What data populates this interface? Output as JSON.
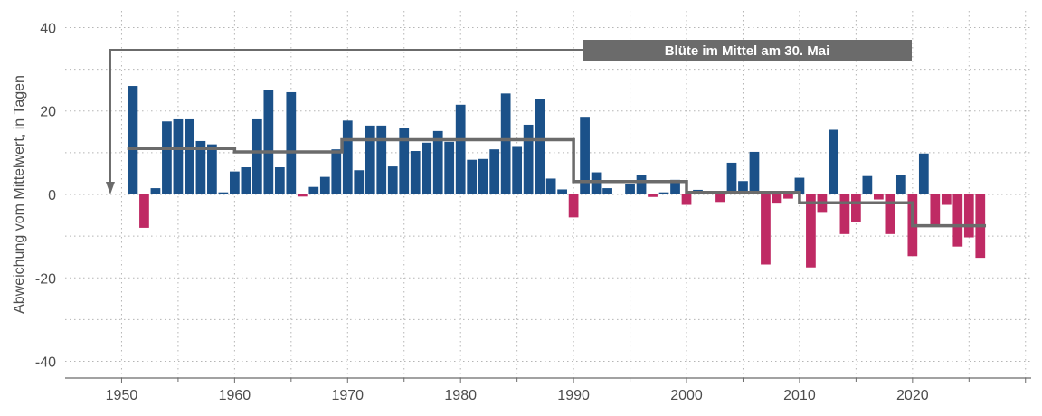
{
  "chart_data": {
    "type": "bar",
    "title": "",
    "xlabel": "",
    "ylabel": "Abweichung vom Mittelwert, in Tagen",
    "ylim": [
      -44,
      44
    ],
    "xlim": [
      1945,
      2030.5
    ],
    "yticks": [
      40,
      20,
      0,
      -20,
      -40
    ],
    "ytick_labels": [
      "40",
      "20",
      "0",
      "-20",
      "-40"
    ],
    "xticks": [
      1950,
      1960,
      1970,
      1980,
      1990,
      2000,
      2010,
      2020
    ],
    "xtick_labels": [
      "1950",
      "1960",
      "1970",
      "1980",
      "1990",
      "2000",
      "2010",
      "2020"
    ],
    "grid": true,
    "colors": {
      "positive": "#1b5189",
      "negative": "#bf2a64",
      "step": "#6b6b6b",
      "grid": "#b5b5b5",
      "axis": "#6b6b6b"
    },
    "annotation": {
      "text": "Blüte im Mittel am 30. Mai",
      "arrow_year": 1949,
      "arrow_y": 0
    },
    "years": [
      1951,
      1952,
      1953,
      1954,
      1955,
      1956,
      1957,
      1958,
      1959,
      1960,
      1961,
      1962,
      1963,
      1964,
      1965,
      1966,
      1967,
      1968,
      1969,
      1970,
      1971,
      1972,
      1973,
      1974,
      1975,
      1976,
      1977,
      1978,
      1979,
      1980,
      1981,
      1982,
      1983,
      1984,
      1985,
      1986,
      1987,
      1988,
      1989,
      1990,
      1991,
      1992,
      1993,
      1994,
      1995,
      1996,
      1997,
      1998,
      1999,
      2000,
      2001,
      2002,
      2003,
      2004,
      2005,
      2006,
      2007,
      2008,
      2009,
      2010,
      2011,
      2012,
      2013,
      2014,
      2015,
      2016,
      2017,
      2018,
      2019,
      2020,
      2021,
      2022,
      2023,
      2024,
      2025,
      2026
    ],
    "values": [
      26,
      -8,
      1.5,
      17.5,
      18,
      18,
      12.8,
      12,
      0.5,
      5.5,
      6.5,
      18,
      25,
      6.5,
      24.5,
      -0.5,
      1.8,
      4.2,
      10.8,
      17.7,
      5.8,
      16.5,
      16.5,
      6.7,
      16,
      10.4,
      12.4,
      15.2,
      12.6,
      21.5,
      8.3,
      8.5,
      10.8,
      24.2,
      11.6,
      16.7,
      22.8,
      3.8,
      1.2,
      -5.5,
      18.6,
      5.3,
      1.5,
      0,
      2.5,
      4.6,
      -0.6,
      0.5,
      3.5,
      -2.5,
      1.1,
      0,
      -1.8,
      7.6,
      3.2,
      10.2,
      -16.8,
      -2.2,
      -1,
      4,
      -17.5,
      -4.2,
      15.5,
      -9.5,
      -6.5,
      4.4,
      -1.2,
      -9.5,
      4.6,
      -14.8,
      9.8,
      -7.5,
      -2.5,
      -12.5,
      -10.3,
      -15.2
    ],
    "period_means": [
      {
        "start": 1950.5,
        "end": 1960,
        "value": 11
      },
      {
        "start": 1960,
        "end": 1969.5,
        "value": 10.2
      },
      {
        "start": 1969.5,
        "end": 1990,
        "value": 13.1
      },
      {
        "start": 1990,
        "end": 2000,
        "value": 3.1
      },
      {
        "start": 2000,
        "end": 2010,
        "value": 0.5
      },
      {
        "start": 2010,
        "end": 2020,
        "value": -2
      },
      {
        "start": 2020,
        "end": 2026.5,
        "value": -7.5
      }
    ]
  }
}
